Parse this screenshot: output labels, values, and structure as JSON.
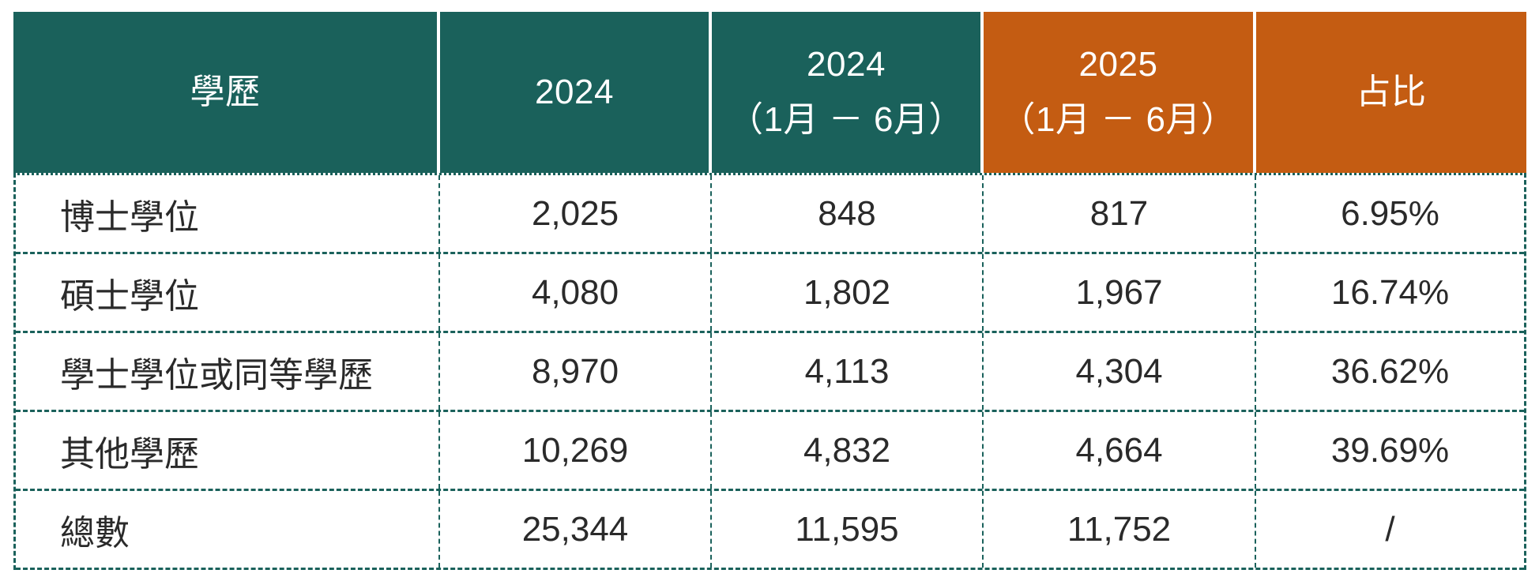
{
  "table": {
    "colors": {
      "header_teal": "#1a615b",
      "header_orange": "#c45c12",
      "border": "#1a615b",
      "text": "#2a2a2a",
      "header_text": "#ffffff"
    },
    "headers": [
      {
        "line1": "學歷",
        "line2": ""
      },
      {
        "line1": "2024",
        "line2": ""
      },
      {
        "line1": "2024",
        "line2": "（1月 － 6月）"
      },
      {
        "line1": "2025",
        "line2": "（1月 － 6月）"
      },
      {
        "line1": "占比",
        "line2": ""
      }
    ],
    "rows": [
      {
        "label": "博士學位",
        "y2024": "2,025",
        "h1_2024": "848",
        "h1_2025": "817",
        "share": "6.95%"
      },
      {
        "label": "碩士學位",
        "y2024": "4,080",
        "h1_2024": "1,802",
        "h1_2025": "1,967",
        "share": "16.74%"
      },
      {
        "label": "學士學位或同等學歷",
        "y2024": "8,970",
        "h1_2024": "4,113",
        "h1_2025": "4,304",
        "share": "36.62%"
      },
      {
        "label": "其他學歷",
        "y2024": "10,269",
        "h1_2024": "4,832",
        "h1_2025": "4,664",
        "share": "39.69%"
      },
      {
        "label": "總數",
        "y2024": "25,344",
        "h1_2024": "11,595",
        "h1_2025": "11,752",
        "share": "/"
      }
    ]
  }
}
